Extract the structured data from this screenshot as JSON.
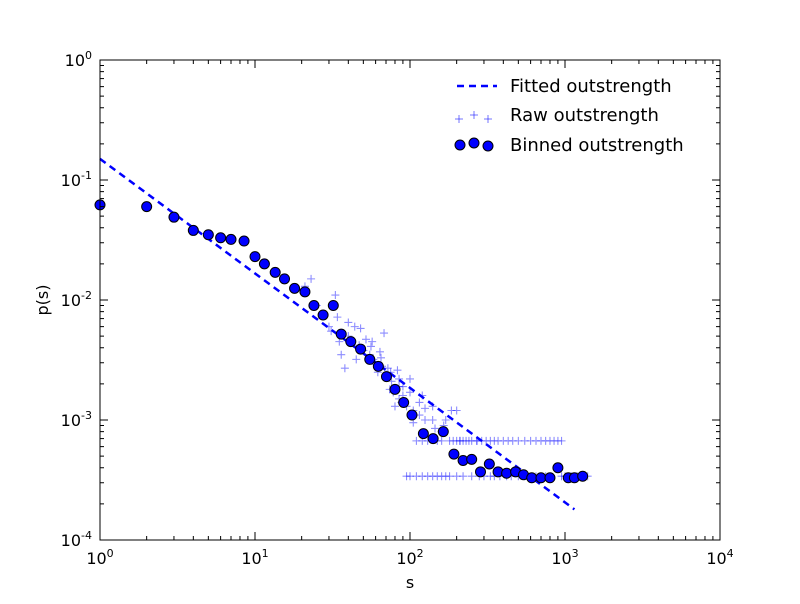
{
  "chart_data": {
    "type": "scatter",
    "xlabel": "s",
    "ylabel": "p(s)",
    "x_scale": "log",
    "y_scale": "log",
    "xlim": [
      1,
      10000
    ],
    "ylim": [
      0.0001,
      1
    ],
    "x_ticks": [
      {
        "value": 1,
        "base": "10",
        "exp": "0"
      },
      {
        "value": 10,
        "base": "10",
        "exp": "1"
      },
      {
        "value": 100,
        "base": "10",
        "exp": "2"
      },
      {
        "value": 1000,
        "base": "10",
        "exp": "3"
      },
      {
        "value": 10000,
        "base": "10",
        "exp": "4"
      }
    ],
    "y_ticks": [
      {
        "value": 0.0001,
        "base": "10",
        "exp": "-4"
      },
      {
        "value": 0.001,
        "base": "10",
        "exp": "-3"
      },
      {
        "value": 0.01,
        "base": "10",
        "exp": "-2"
      },
      {
        "value": 0.1,
        "base": "10",
        "exp": "-1"
      },
      {
        "value": 1,
        "base": "10",
        "exp": "0"
      }
    ],
    "grid": false,
    "legend_position": "top-right",
    "colors": {
      "fit": "#0000ff",
      "raw": "#0000ff",
      "binned_fill": "#0000ff",
      "binned_edge": "#000000"
    },
    "series": [
      {
        "name": "Fitted outstrength",
        "style": "dashed-line",
        "x": [
          1,
          1150
        ],
        "y": [
          0.15,
          0.00018
        ]
      },
      {
        "name": "Raw outstrength",
        "style": "plus-markers",
        "x": [
          21,
          23,
          25,
          27,
          30,
          31,
          33,
          35,
          36,
          38,
          40,
          42,
          44,
          45,
          47,
          50,
          52,
          55,
          57,
          58,
          60,
          62,
          64,
          66,
          68,
          70,
          72,
          74,
          76,
          78,
          80,
          83,
          85,
          88,
          90,
          95,
          100,
          105,
          110,
          115,
          120,
          125,
          130,
          140,
          150,
          160,
          170,
          180,
          190,
          200,
          210,
          220,
          230,
          250,
          270,
          290,
          310,
          330,
          350,
          370,
          400,
          430,
          460,
          500,
          550,
          600,
          650,
          700,
          750,
          800,
          850,
          900,
          950,
          1000,
          1100,
          1200,
          1300,
          1400,
          95,
          100,
          110,
          120,
          130,
          140,
          150,
          160,
          170,
          180,
          200,
          220,
          250,
          280,
          300,
          330,
          350,
          380,
          420,
          450,
          500,
          550,
          650,
          750,
          950,
          85,
          90,
          105,
          115,
          125,
          145,
          165,
          185,
          210,
          240,
          270,
          34,
          40,
          48,
          56,
          65,
          75,
          85,
          100,
          120,
          140,
          160,
          200
        ],
        "y": [
          0.013,
          0.015,
          0.009,
          0.0075,
          0.006,
          0.0055,
          0.011,
          0.0045,
          0.0035,
          0.0027,
          0.005,
          0.0045,
          0.006,
          0.0032,
          0.0042,
          0.0038,
          0.0047,
          0.0035,
          0.0045,
          0.0032,
          0.0029,
          0.0025,
          0.0037,
          0.0028,
          0.0053,
          0.0024,
          0.0027,
          0.0018,
          0.0021,
          0.0017,
          0.0013,
          0.0026,
          0.0022,
          0.0014,
          0.0019,
          0.0013,
          0.0017,
          0.0012,
          0.00067,
          0.0014,
          0.00067,
          0.001,
          0.00067,
          0.001,
          0.00067,
          0.00067,
          0.001,
          0.00067,
          0.00067,
          0.00067,
          0.00067,
          0.00067,
          0.00067,
          0.00067,
          0.00067,
          0.00067,
          0.00067,
          0.00067,
          0.00067,
          0.00067,
          0.00067,
          0.00067,
          0.00067,
          0.00067,
          0.00067,
          0.00067,
          0.00067,
          0.00067,
          0.00067,
          0.00067,
          0.00067,
          0.00067,
          0.00067,
          0.00034,
          0.00034,
          0.00034,
          0.00034,
          0.00034,
          0.00034,
          0.00034,
          0.00034,
          0.00034,
          0.00034,
          0.00034,
          0.00034,
          0.00034,
          0.00034,
          0.00034,
          0.00034,
          0.00034,
          0.00034,
          0.00034,
          0.00034,
          0.00034,
          0.00034,
          0.00034,
          0.00034,
          0.00034,
          0.00034,
          0.00034,
          0.00034,
          0.00034,
          0.00034,
          0.0015,
          0.0016,
          0.00095,
          0.0011,
          0.00125,
          0.00085,
          0.0009,
          0.0012,
          0.00067,
          0.00067,
          0.00067,
          0.0072,
          0.0065,
          0.0058,
          0.0041,
          0.0033,
          0.0025,
          0.0019,
          0.0022,
          0.0016,
          0.0013,
          0.0008,
          0.0012
        ]
      },
      {
        "name": "Binned outstrength",
        "style": "circle-markers",
        "x": [
          1,
          2,
          3,
          4,
          5,
          6,
          7,
          8.5,
          10,
          11.5,
          13.5,
          15.5,
          18,
          21,
          24,
          27.5,
          32,
          36,
          41.5,
          48,
          55,
          62.5,
          70.5,
          80,
          91,
          103,
          122,
          141,
          164,
          192,
          220,
          250,
          285,
          325,
          370,
          420,
          480,
          540,
          610,
          700,
          800,
          900,
          1050,
          1150,
          1300
        ],
        "y": [
          0.062,
          0.06,
          0.049,
          0.038,
          0.035,
          0.033,
          0.032,
          0.031,
          0.023,
          0.02,
          0.017,
          0.015,
          0.0125,
          0.0117,
          0.009,
          0.0075,
          0.009,
          0.0052,
          0.0045,
          0.0039,
          0.0032,
          0.0028,
          0.0023,
          0.0018,
          0.0014,
          0.0011,
          0.00077,
          0.0007,
          0.0008,
          0.00052,
          0.00046,
          0.00047,
          0.00037,
          0.00043,
          0.00037,
          0.00036,
          0.00037,
          0.00035,
          0.00033,
          0.00033,
          0.00033,
          0.0004,
          0.00033,
          0.00033,
          0.00034
        ]
      }
    ]
  }
}
